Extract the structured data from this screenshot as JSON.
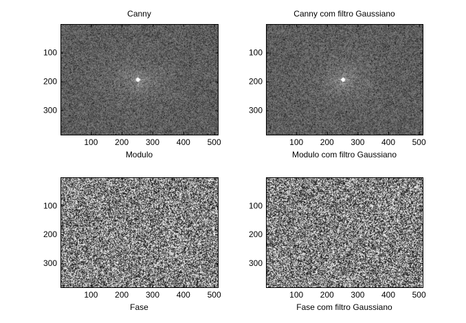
{
  "figure": {
    "background": "#ffffff"
  },
  "chart_data": [
    {
      "type": "heatmap",
      "title": "Canny",
      "xlabel": "Modulo",
      "ylabel": "",
      "xlim": [
        1,
        512
      ],
      "ylim": [
        1,
        384
      ],
      "y_reversed": true,
      "xticks": [
        100,
        200,
        300,
        400,
        500
      ],
      "yticks": [
        100,
        200,
        300
      ],
      "colormap": "gray",
      "content": "FFT magnitude spectrum (noise-like)"
    },
    {
      "type": "heatmap",
      "title": "Canny com filtro Gaussiano",
      "xlabel": "Modulo com filtro Gaussiano",
      "ylabel": "",
      "xlim": [
        1,
        512
      ],
      "ylim": [
        1,
        384
      ],
      "y_reversed": true,
      "xticks": [
        100,
        200,
        300,
        400,
        500
      ],
      "yticks": [
        100,
        200,
        300
      ],
      "colormap": "gray",
      "content": "FFT magnitude spectrum (noise-like)"
    },
    {
      "type": "heatmap",
      "title": "",
      "xlabel": "Fase",
      "ylabel": "",
      "xlim": [
        1,
        512
      ],
      "ylim": [
        1,
        384
      ],
      "y_reversed": true,
      "xticks": [
        100,
        200,
        300,
        400,
        500
      ],
      "yticks": [
        100,
        200,
        300
      ],
      "colormap": "gray",
      "content": "FFT phase (random noise)"
    },
    {
      "type": "heatmap",
      "title": "",
      "xlabel": "Fase com filtro Gaussiano",
      "ylabel": "",
      "xlim": [
        1,
        512
      ],
      "ylim": [
        1,
        384
      ],
      "y_reversed": true,
      "xticks": [
        100,
        200,
        300,
        400,
        500
      ],
      "yticks": [
        100,
        200,
        300
      ],
      "colormap": "gray",
      "content": "FFT phase (random noise)"
    }
  ]
}
